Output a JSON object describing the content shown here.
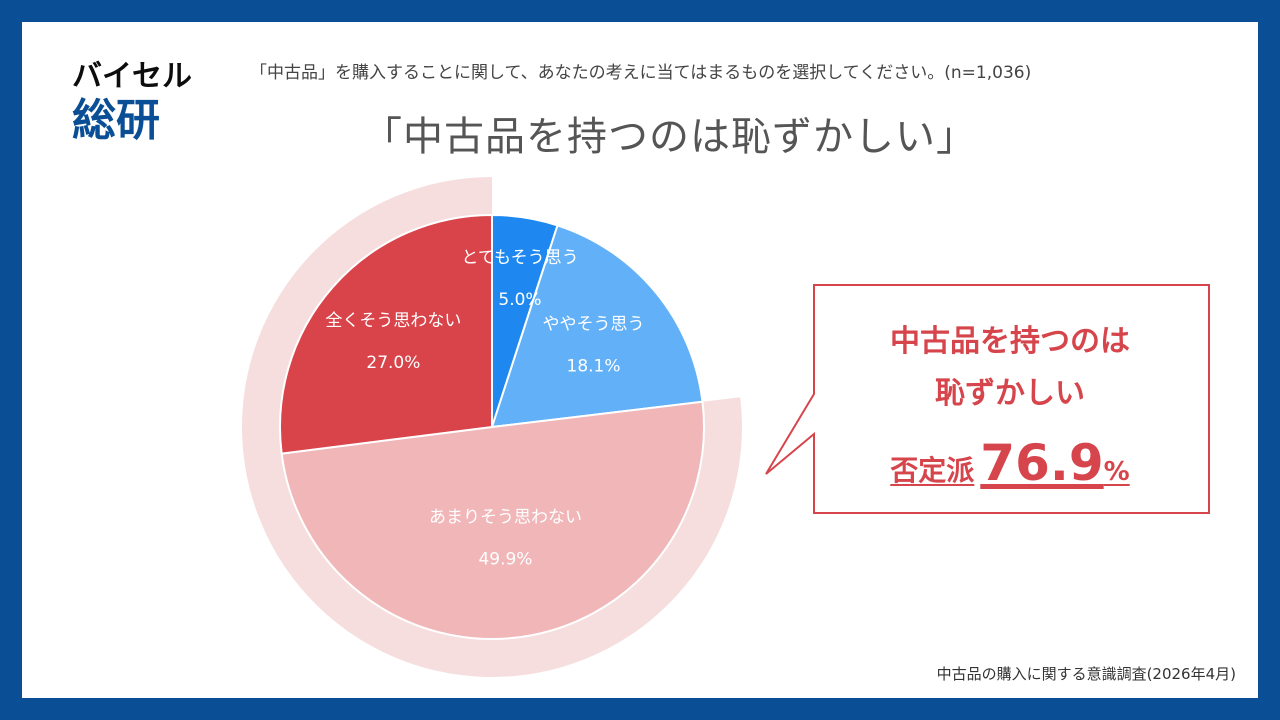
{
  "logo": {
    "brand": "バイセル",
    "division": "総研"
  },
  "header": {
    "question": "「中古品」を購入することに関して、あなたの考えに当てはまるものを選択してください。(n=1,036)",
    "title": "「中古品を持つのは恥ずかしい」"
  },
  "chart_data": {
    "type": "pie",
    "categories": [
      "とてもそう思う",
      "ややそう思う",
      "あまりそう思わない",
      "全くそう思わない"
    ],
    "values": [
      5.0,
      18.1,
      49.9,
      27.0
    ],
    "value_labels": [
      "5.0%",
      "18.1%",
      "49.9%",
      "27.0%"
    ],
    "colors": [
      "#1e88f0",
      "#62b0f7",
      "#f0b6b8",
      "#d9434a"
    ],
    "highlight_ring": {
      "categories": [
        "あまりそう思わない",
        "全くそう思わない"
      ],
      "color": "#f6dedf"
    },
    "start": "top",
    "direction": "clockwise"
  },
  "callout": {
    "line1": "中古品を持つのは",
    "line2": "恥ずかしい",
    "stat_label": "否定派",
    "stat_value": "76.9",
    "stat_unit": "%",
    "border_color": "#d6454b"
  },
  "footer": {
    "source": "中古品の購入に関する意識調査(2026年4月)"
  },
  "colors": {
    "frame": "#0a4f95",
    "accent_red": "#d6454b"
  }
}
